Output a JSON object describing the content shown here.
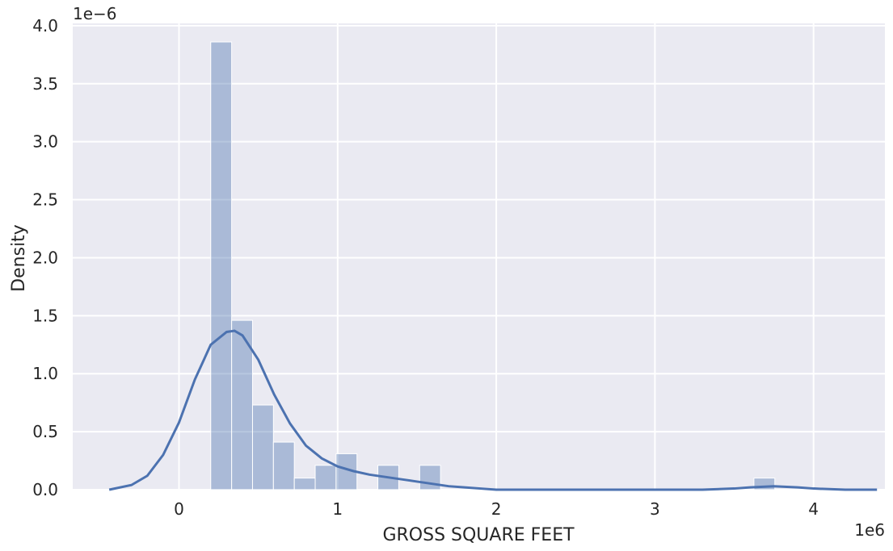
{
  "chart_data": {
    "type": "bar",
    "xlabel": "GROSS SQUARE FEET",
    "ylabel": "Density",
    "x_offset_label": "1e6",
    "y_offset_label": "1e−6",
    "x_scale": 1000000,
    "y_scale": 1e-06,
    "xlim": [
      -0.67,
      4.45
    ],
    "ylim": [
      0,
      4.02
    ],
    "x_ticks": [
      0,
      1,
      2,
      3,
      4
    ],
    "y_ticks": [
      0.0,
      0.5,
      1.0,
      1.5,
      2.0,
      2.5,
      3.0,
      3.5,
      4.0
    ],
    "y_tick_labels": [
      "0.0",
      "0.5",
      "1.0",
      "1.5",
      "2.0",
      "2.5",
      "3.0",
      "3.5",
      "4.0"
    ],
    "grid": true,
    "legend": "none",
    "bar_color": "#4c72b0",
    "background_color": "#eaeaf2",
    "histogram": {
      "bin_width": 0.1317,
      "bin_starts": [
        0.2,
        0.3317,
        0.4634,
        0.5951,
        0.7268,
        0.8585,
        0.9902,
        1.1219,
        1.2536,
        1.3853,
        1.517,
        1.6487,
        1.7804,
        1.9121,
        2.0438,
        2.1755,
        2.3072,
        2.4389,
        2.5706,
        2.7023,
        2.834,
        2.9657,
        3.0974,
        3.2291,
        3.3608,
        3.4925,
        3.6242,
        3.7559
      ],
      "densities": [
        3.86,
        1.46,
        0.73,
        0.41,
        0.1,
        0.21,
        0.31,
        0.0,
        0.21,
        0.0,
        0.21,
        0.0,
        0.0,
        0.0,
        0.0,
        0.0,
        0.0,
        0.0,
        0.0,
        0.0,
        0.0,
        0.0,
        0.0,
        0.0,
        0.0,
        0.0,
        0.1,
        0.0
      ]
    },
    "kde": {
      "name": "KDE",
      "x": [
        -0.44,
        -0.3,
        -0.2,
        -0.1,
        0.0,
        0.1,
        0.2,
        0.3,
        0.35,
        0.4,
        0.5,
        0.6,
        0.7,
        0.8,
        0.9,
        1.0,
        1.1,
        1.2,
        1.3,
        1.4,
        1.5,
        1.6,
        1.7,
        1.8,
        1.9,
        2.0,
        2.5,
        3.0,
        3.3,
        3.5,
        3.6,
        3.75,
        3.9,
        4.0,
        4.2,
        4.4
      ],
      "y": [
        0.0,
        0.04,
        0.12,
        0.3,
        0.58,
        0.95,
        1.25,
        1.36,
        1.37,
        1.33,
        1.12,
        0.82,
        0.57,
        0.38,
        0.27,
        0.2,
        0.16,
        0.13,
        0.11,
        0.09,
        0.07,
        0.05,
        0.03,
        0.02,
        0.01,
        0.0,
        0.0,
        0.0,
        0.0,
        0.01,
        0.02,
        0.03,
        0.02,
        0.01,
        0.0,
        0.0
      ]
    }
  }
}
